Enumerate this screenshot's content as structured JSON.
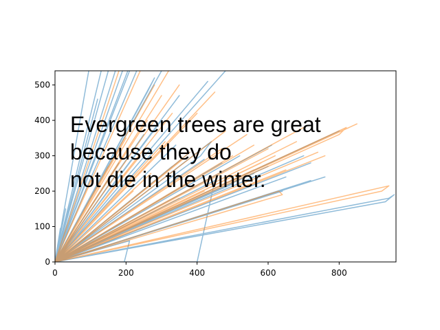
{
  "chart_data": {
    "type": "line",
    "title": "",
    "xlabel": "",
    "ylabel": "",
    "xlim": [
      0,
      960
    ],
    "ylim": [
      0,
      540
    ],
    "xticks": [
      0,
      200,
      400,
      600,
      800
    ],
    "yticks": [
      0,
      100,
      200,
      300,
      400,
      500
    ],
    "grid": false,
    "legend": "none",
    "series": [
      {
        "color": "#1f77b4",
        "alpha": 0.5,
        "points": [
          [
            0,
            0
          ],
          [
            130,
            540
          ],
          [
            0,
            0
          ],
          [
            150,
            540
          ],
          [
            0,
            0
          ],
          [
            170,
            540
          ],
          [
            0,
            0
          ],
          [
            190,
            540
          ],
          [
            0,
            0
          ],
          [
            205,
            540
          ],
          [
            0,
            0
          ],
          [
            230,
            540
          ],
          [
            0,
            0
          ],
          [
            95,
            540
          ],
          [
            0,
            0
          ],
          [
            120,
            460
          ],
          [
            0,
            0
          ],
          [
            15,
            95
          ],
          [
            0,
            0
          ],
          [
            30,
            150
          ],
          [
            0,
            0
          ],
          [
            210,
            540
          ],
          [
            0,
            0
          ],
          [
            250,
            360
          ],
          [
            0,
            0
          ],
          [
            300,
            400
          ],
          [
            0,
            0
          ],
          [
            340,
            330
          ],
          [
            0,
            0
          ],
          [
            380,
            310
          ],
          [
            0,
            0
          ],
          [
            420,
            290
          ],
          [
            0,
            0
          ],
          [
            470,
            280
          ],
          [
            0,
            0
          ],
          [
            520,
            300
          ],
          [
            0,
            0
          ],
          [
            560,
            250
          ],
          [
            0,
            0
          ],
          [
            600,
            270
          ],
          [
            0,
            0
          ],
          [
            650,
            240
          ],
          [
            0,
            0
          ],
          [
            720,
            280
          ],
          [
            0,
            0
          ],
          [
            760,
            240
          ],
          [
            0,
            0
          ],
          [
            930,
            170
          ],
          [
            955,
            190
          ],
          [
            940,
            180
          ],
          [
            0,
            0
          ],
          [
            720,
            230
          ],
          [
            0,
            0
          ],
          [
            640,
            200
          ],
          [
            0,
            0
          ],
          [
            500,
            220
          ],
          [
            0,
            0
          ],
          [
            480,
            540
          ],
          [
            0,
            0
          ],
          [
            430,
            510
          ],
          [
            0,
            0
          ],
          [
            330,
            270
          ],
          [
            0,
            0
          ],
          [
            270,
            360
          ],
          [
            0,
            0
          ],
          [
            210,
            60
          ],
          [
            195,
            0
          ],
          [
            0,
            0
          ],
          [
            220,
            0
          ],
          [
            0,
            0
          ],
          [
            400,
            0
          ],
          [
            450,
            230
          ],
          [
            0,
            0
          ],
          [
            180,
            280
          ],
          [
            0,
            0
          ],
          [
            260,
            480
          ],
          [
            280,
            520
          ],
          [
            0,
            0
          ],
          [
            350,
            470
          ],
          [
            0,
            0
          ],
          [
            800,
            370
          ],
          [
            0,
            0
          ],
          [
            610,
            330
          ],
          [
            0,
            0
          ],
          [
            700,
            300
          ],
          [
            0,
            0
          ],
          [
            410,
            300
          ],
          [
            440,
            340
          ],
          [
            0,
            0
          ],
          [
            300,
            540
          ]
        ]
      },
      {
        "color": "#ff7f0e",
        "alpha": 0.5,
        "points": [
          [
            0,
            0
          ],
          [
            180,
            540
          ],
          [
            0,
            0
          ],
          [
            240,
            540
          ],
          [
            0,
            0
          ],
          [
            280,
            500
          ],
          [
            0,
            0
          ],
          [
            320,
            540
          ],
          [
            0,
            0
          ],
          [
            350,
            500
          ],
          [
            0,
            0
          ],
          [
            300,
            470
          ],
          [
            0,
            0
          ],
          [
            260,
            400
          ],
          [
            0,
            0
          ],
          [
            200,
            350
          ],
          [
            0,
            0
          ],
          [
            400,
            420
          ],
          [
            0,
            0
          ],
          [
            450,
            480
          ],
          [
            0,
            0
          ],
          [
            500,
            300
          ],
          [
            0,
            0
          ],
          [
            560,
            330
          ],
          [
            0,
            0
          ],
          [
            620,
            300
          ],
          [
            0,
            0
          ],
          [
            680,
            340
          ],
          [
            0,
            0
          ],
          [
            740,
            310
          ],
          [
            0,
            0
          ],
          [
            800,
            360
          ],
          [
            820,
            380
          ],
          [
            0,
            0
          ],
          [
            850,
            390
          ],
          [
            0,
            0
          ],
          [
            940,
            215
          ],
          [
            920,
            200
          ],
          [
            0,
            0
          ],
          [
            640,
            190
          ],
          [
            630,
            200
          ],
          [
            0,
            0
          ],
          [
            560,
            260
          ],
          [
            0,
            0
          ],
          [
            470,
            320
          ],
          [
            0,
            0
          ],
          [
            380,
            310
          ],
          [
            0,
            0
          ],
          [
            310,
            340
          ],
          [
            0,
            0
          ],
          [
            240,
            300
          ],
          [
            0,
            0
          ],
          [
            150,
            270
          ],
          [
            0,
            0
          ],
          [
            100,
            230
          ],
          [
            0,
            0
          ],
          [
            60,
            180
          ],
          [
            0,
            0
          ],
          [
            350,
            180
          ],
          [
            0,
            0
          ],
          [
            420,
            200
          ],
          [
            0,
            0
          ],
          [
            500,
            250
          ],
          [
            0,
            0
          ],
          [
            580,
            280
          ],
          [
            0,
            0
          ],
          [
            650,
            260
          ],
          [
            0,
            0
          ],
          [
            700,
            380
          ],
          [
            0,
            0
          ],
          [
            760,
            300
          ],
          [
            0,
            0
          ],
          [
            330,
            420
          ],
          [
            0,
            0
          ],
          [
            270,
            250
          ],
          [
            0,
            0
          ],
          [
            400,
            240
          ],
          [
            0,
            0
          ],
          [
            480,
            370
          ],
          [
            0,
            0
          ],
          [
            540,
            360
          ],
          [
            0,
            0
          ],
          [
            600,
            320
          ],
          [
            0,
            0
          ],
          [
            220,
            200
          ],
          [
            0,
            0
          ],
          [
            360,
            290
          ]
        ]
      }
    ],
    "annotation": "Evergreen trees are great because they do not die in the winter."
  }
}
